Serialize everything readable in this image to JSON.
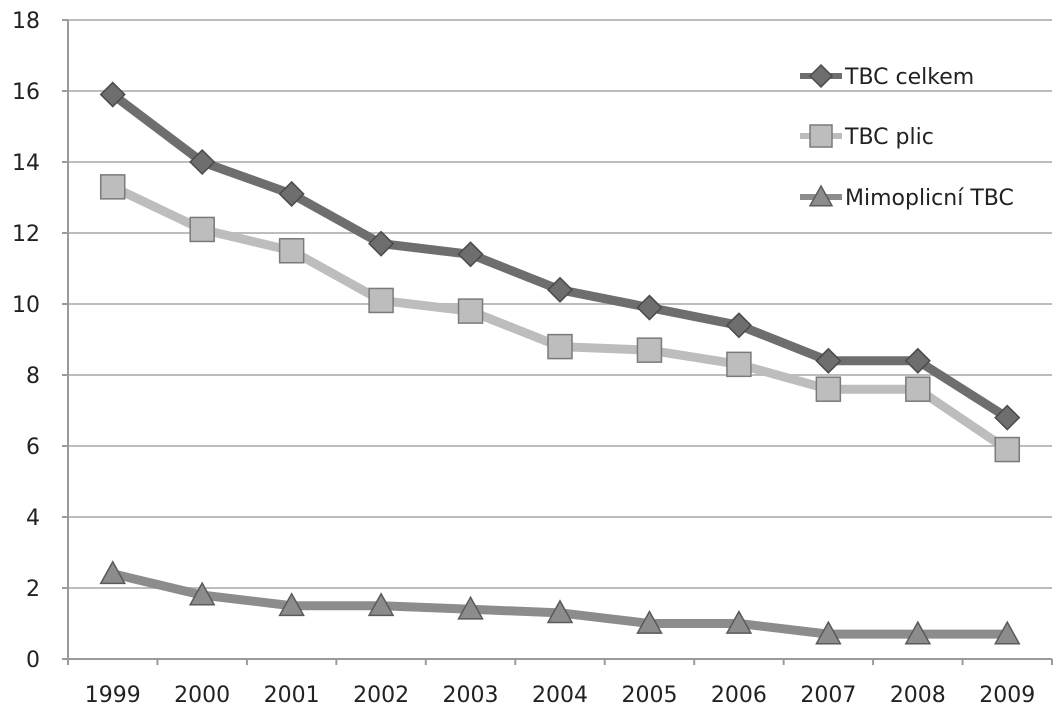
{
  "chart_data": {
    "type": "line",
    "title": "",
    "xlabel": "",
    "ylabel": "",
    "categories": [
      "1999",
      "2000",
      "2001",
      "2002",
      "2003",
      "2004",
      "2005",
      "2006",
      "2007",
      "2008",
      "2009"
    ],
    "ylim": [
      0,
      18
    ],
    "yticks": [
      "0",
      "2",
      "4",
      "6",
      "8",
      "10",
      "12",
      "14",
      "16",
      "18"
    ],
    "grid": true,
    "legend_position": "top-right",
    "series": [
      {
        "name": "TBC celkem",
        "marker": "diamond",
        "color": "#6e6e6e",
        "values": [
          15.9,
          14.0,
          13.1,
          11.7,
          11.4,
          10.4,
          9.9,
          9.4,
          8.4,
          8.4,
          6.8
        ]
      },
      {
        "name": "TBC plic",
        "marker": "square",
        "color": "#bdbdbd",
        "values": [
          13.3,
          12.1,
          11.5,
          10.1,
          9.8,
          8.8,
          8.7,
          8.3,
          7.6,
          7.6,
          5.9
        ]
      },
      {
        "name": "Mimoplicní TBC",
        "marker": "triangle",
        "color": "#8c8c8c",
        "values": [
          2.4,
          1.8,
          1.5,
          1.5,
          1.4,
          1.3,
          1.0,
          1.0,
          0.7,
          0.7,
          0.7
        ]
      }
    ]
  }
}
